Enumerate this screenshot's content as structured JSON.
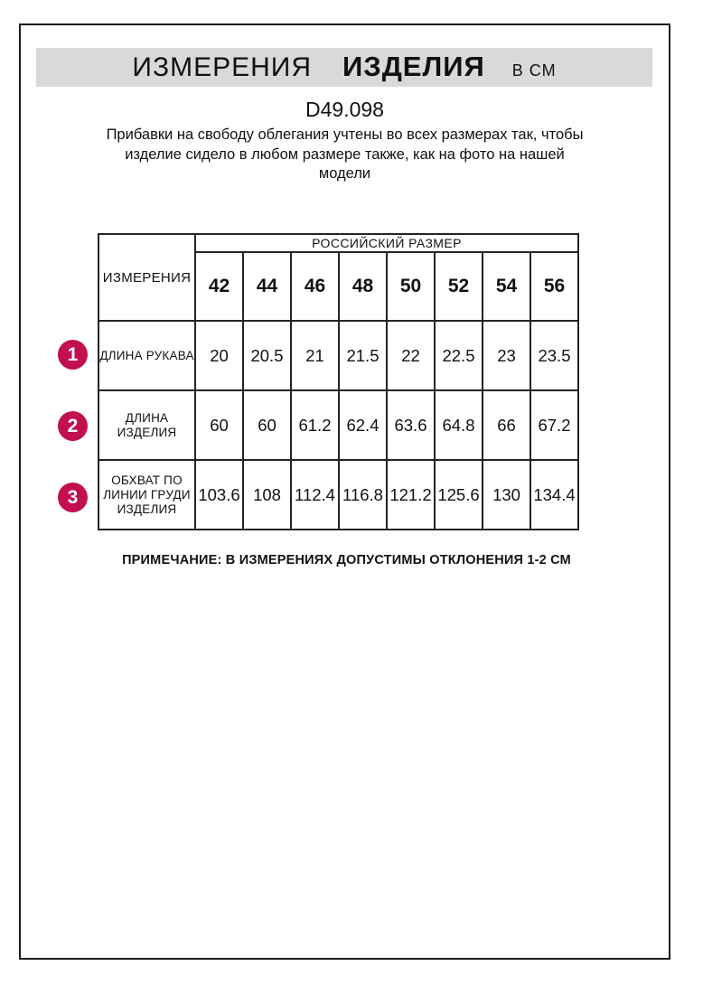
{
  "header": {
    "title": "ИЗМЕРЕНИЯ",
    "title_bold": "ИЗДЕЛИЯ",
    "unit": "В СМ"
  },
  "model_code": "D49.098",
  "description": "Прибавки на свободу облегания учтены во всех размерах так, чтобы изделие сидело в любом размере также, как на фото на нашей модели",
  "description_lines": [
    "Прибавки на свободу облегания учтены во всех размерах так, чтобы",
    "изделие сидело в любом размере также, как на фото на нашей",
    "модели"
  ],
  "table": {
    "corner_label": "ИЗМЕРЕНИЯ",
    "group_header": "РОССИЙСКИЙ РАЗМЕР",
    "sizes": [
      "42",
      "44",
      "46",
      "48",
      "50",
      "52",
      "54",
      "56"
    ],
    "rows": [
      {
        "num": "1",
        "label": "ДЛИНА РУКАВА",
        "label_lines": [
          "ДЛИНА РУКАВА"
        ],
        "values": [
          "20",
          "20.5",
          "21",
          "21.5",
          "22",
          "22.5",
          "23",
          "23.5"
        ]
      },
      {
        "num": "2",
        "label": "ДЛИНА ИЗДЕЛИЯ",
        "label_lines": [
          "ДЛИНА",
          "ИЗДЕЛИЯ"
        ],
        "values": [
          "60",
          "60",
          "61.2",
          "62.4",
          "63.6",
          "64.8",
          "66",
          "67.2"
        ]
      },
      {
        "num": "3",
        "label": "ОБХВАТ ПО ЛИНИИ ГРУДИ ИЗДЕЛИЯ",
        "label_lines": [
          "ОБХВАТ ПО",
          "ЛИНИИ ГРУДИ",
          "ИЗДЕЛИЯ"
        ],
        "values": [
          "103.6",
          "108",
          "112.4",
          "116.8",
          "121.2",
          "125.6",
          "130",
          "134.4"
        ]
      }
    ]
  },
  "note": "ПРИМЕЧАНИЕ: В ИЗМЕРЕНИЯХ ДОПУСТИМЫ ОТКЛОНЕНИЯ 1-2 СМ",
  "colors": {
    "accent": "#c10f50",
    "header_bg": "#d9d9d9",
    "frame_border": "#1b1b1b",
    "table_border": "#242424"
  }
}
